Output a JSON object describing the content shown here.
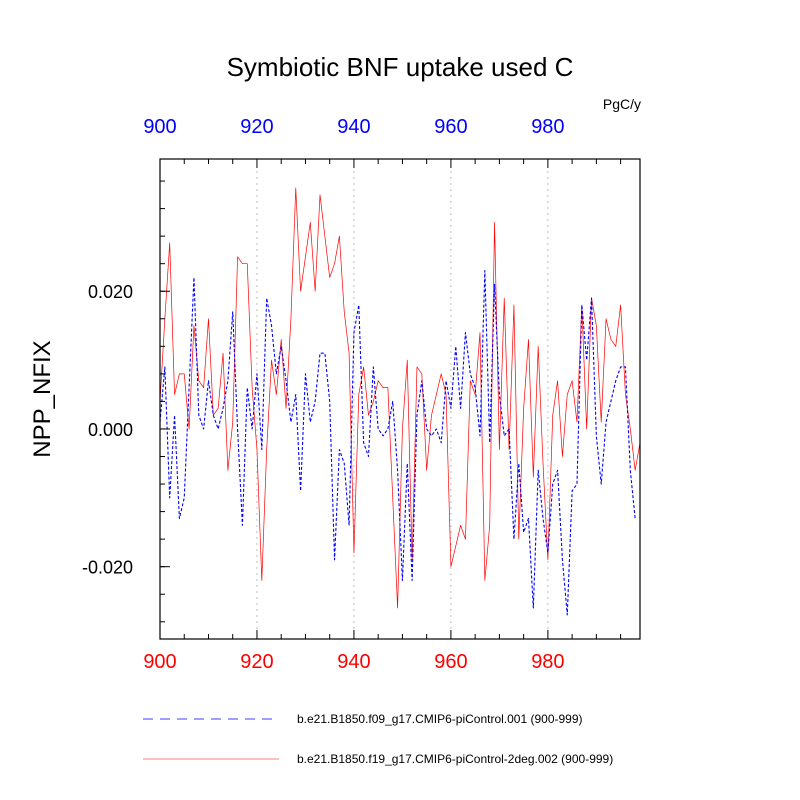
{
  "chart_data": {
    "type": "line",
    "title": "Symbiotic BNF uptake used C",
    "units": "PgC/y",
    "ylabel": "NPP_NFIX",
    "xlim": [
      900,
      999
    ],
    "ylim": [
      -0.0305,
      0.0392
    ],
    "yticks": [
      -0.02,
      0.0,
      0.02
    ],
    "ytick_labels": [
      "-0.020",
      "0.000",
      "0.020"
    ],
    "xticks": [
      900,
      920,
      940,
      960,
      980
    ],
    "xtick_labels": [
      "900",
      "920",
      "940",
      "960",
      "980"
    ],
    "x_minor_gridlines": [
      920,
      940,
      960,
      980
    ],
    "bottom_axis_color": "#ff0000",
    "top_axis_color": "#0000ff",
    "series": [
      {
        "name": "b.e21.B1850.f09_g17.CMIP6-piControl.001 (900-999)",
        "color": "#0000ff",
        "dash": "dashed",
        "x_start": 900,
        "values": [
          0.001,
          0.009,
          -0.01,
          0.002,
          -0.013,
          -0.01,
          0.006,
          0.022,
          0.002,
          0.0,
          0.007,
          0.002,
          0.0,
          0.003,
          0.007,
          0.017,
          0.0,
          -0.014,
          0.006,
          0.0,
          0.008,
          -0.003,
          0.019,
          0.015,
          0.008,
          0.012,
          0.007,
          0.001,
          0.005,
          -0.009,
          0.008,
          0.001,
          0.004,
          0.011,
          0.011,
          0.004,
          -0.019,
          -0.003,
          -0.005,
          -0.014,
          0.014,
          0.018,
          -0.002,
          -0.004,
          0.009,
          0.0,
          -0.001,
          0.0,
          0.004,
          -0.006,
          -0.022,
          -0.005,
          -0.022,
          0.002,
          0.007,
          0.0,
          -0.001,
          0.0,
          -0.002,
          0.007,
          0.003,
          0.012,
          0.003,
          0.014,
          0.008,
          0.006,
          -0.001,
          0.023,
          -0.002,
          0.021,
          0.005,
          -0.001,
          0.0,
          -0.016,
          -0.005,
          -0.015,
          -0.013,
          -0.026,
          -0.006,
          -0.013,
          -0.018,
          -0.008,
          -0.006,
          -0.019,
          -0.027,
          -0.009,
          -0.008,
          0.018,
          0.01,
          0.019,
          -0.001,
          -0.008,
          0.001,
          0.004,
          0.007,
          0.009,
          0.009,
          -0.006,
          -0.013
        ]
      },
      {
        "name": "b.e21.B1850.f19_g17.CMIP6-piControl-2deg.002 (900-999)",
        "color": "#ff0000",
        "dash": "solid",
        "x_start": 900,
        "values": [
          0.004,
          0.016,
          0.027,
          0.005,
          0.008,
          0.008,
          0.0,
          0.015,
          0.007,
          0.006,
          0.016,
          0.002,
          0.003,
          0.011,
          -0.006,
          0.001,
          0.025,
          0.024,
          0.024,
          0.006,
          -0.003,
          -0.022,
          -0.003,
          0.01,
          0.005,
          0.013,
          0.003,
          0.016,
          0.035,
          0.02,
          0.025,
          0.03,
          0.02,
          0.034,
          0.028,
          0.022,
          0.024,
          0.028,
          0.017,
          0.011,
          -0.018,
          0.005,
          0.009,
          0.002,
          0.004,
          0.007,
          0.006,
          0.006,
          -0.01,
          -0.026,
          0.0,
          0.01,
          -0.019,
          0.009,
          0.008,
          -0.006,
          0.002,
          0.005,
          0.008,
          0.005,
          -0.02,
          -0.017,
          -0.014,
          -0.016,
          0.007,
          0.005,
          0.014,
          -0.022,
          -0.014,
          0.03,
          -0.003,
          0.019,
          -0.003,
          0.018,
          -0.016,
          0.003,
          0.013,
          -0.007,
          0.012,
          -0.005,
          -0.019,
          0.002,
          0.007,
          -0.004,
          0.005,
          0.007,
          0.001,
          0.018,
          0.0,
          0.019,
          0.015,
          0.001,
          0.016,
          0.013,
          0.012,
          0.018,
          0.005,
          0.0,
          -0.006,
          -0.002
        ]
      }
    ]
  }
}
